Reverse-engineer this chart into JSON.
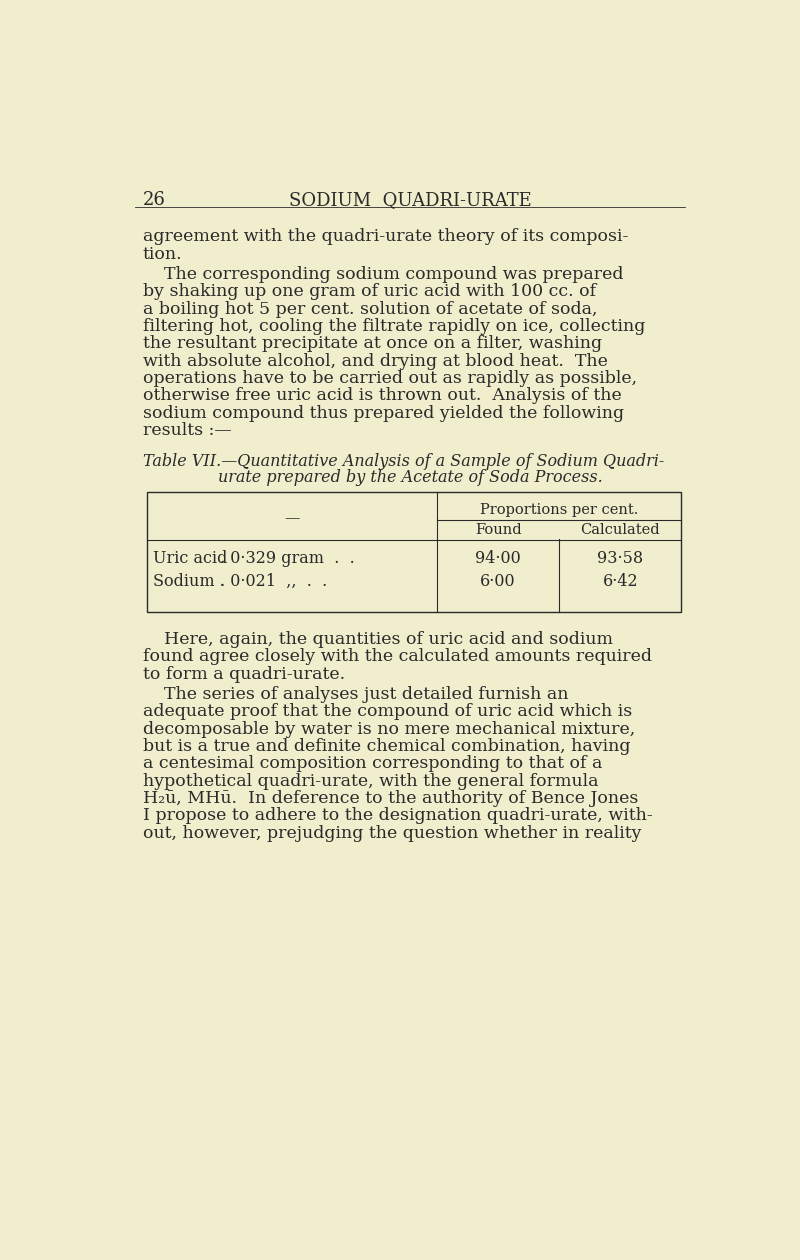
{
  "bg_color": "#f0eecc",
  "text_color": "#2a2a2a",
  "page_number": "26",
  "header": "SODIUM  QUADRI-URATE",
  "paragraph1_lines": [
    "agreement with the quadri-urate theory of its composi-",
    "tion."
  ],
  "paragraph2_lines": [
    "The corresponding sodium compound was prepared",
    "by shaking up one gram of uric acid with 100 cc. of",
    "a boiling hot 5 per cent. solution of acetate of soda,",
    "filtering hot, cooling the filtrate rapidly on ice, collecting",
    "the resultant precipitate at once on a filter, washing",
    "with absolute alcohol, and drying at blood heat.  The",
    "operations have to be carried out as rapidly as possible,",
    "otherwise free uric acid is thrown out.  Analysis of the",
    "sodium compound thus prepared yielded the following",
    "results :—"
  ],
  "table_caption_line1": "Table VII.—Quantitative Analysis of a Sample of Sodium Quadri-",
  "table_caption_line2": "urate prepared by the Acetate of Soda Process.",
  "table_header1": "Proportions per cent.",
  "table_header2a": "Found",
  "table_header2b": "Calculated",
  "table_row1_label": "Uric acid",
  "table_row1_detail": ". 0·329 gram  .  .",
  "table_row1_found": "94·00",
  "table_row1_calc": "93·58",
  "table_row2_label": "Sodium .",
  "table_row2_detail": ". 0·021  ,,  .  .",
  "table_row2_found": "6·00",
  "table_row2_calc": "6·42",
  "paragraph3_lines": [
    "Here, again, the quantities of uric acid and sodium",
    "found agree closely with the calculated amounts required",
    "to form a quadri-urate."
  ],
  "paragraph4_lines": [
    "The series of analyses just detailed furnish an",
    "adequate proof that the compound of uric acid which is",
    "decomposable by water is no mere mechanical mixture,",
    "but is a true and definite chemical combination, having",
    "a centesimal composition corresponding to that of a",
    "hypothetical quadri-urate, with the general formula",
    "H₂ū, MHū.  In deference to the authority of Bence Jones",
    "I propose to adhere to the designation quadri-urate, with-",
    "out, however, prejudging the question whether in reality"
  ]
}
